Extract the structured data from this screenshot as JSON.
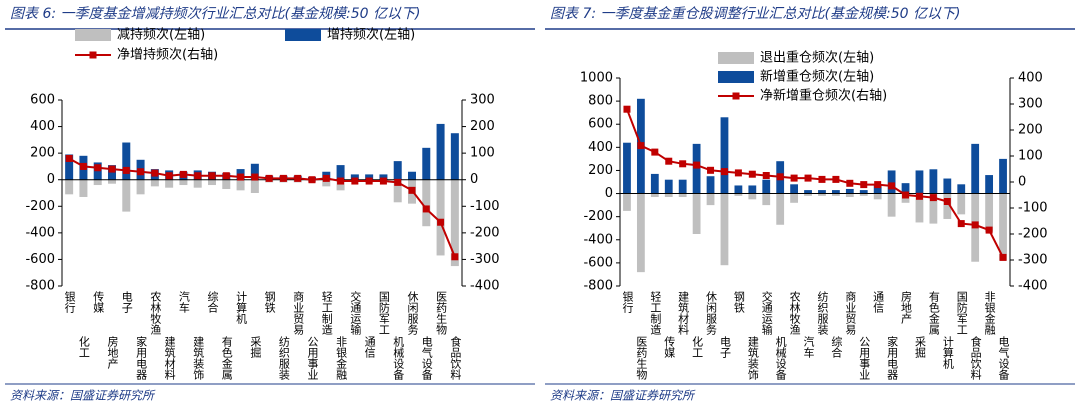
{
  "chart_data": [
    {
      "type": "bar",
      "title": "图表 6:  一季度基金增减持频次行业汇总对比(基金规模:50 亿以下)",
      "source": "资料来源：国盛证券研究所",
      "categories": [
        "银行",
        "化工",
        "传媒",
        "房地产",
        "电子",
        "家用电器",
        "农林牧渔",
        "建筑材料",
        "汽车",
        "建筑装饰",
        "综合",
        "有色金属",
        "计算机",
        "采掘",
        "钢铁",
        "纺织服装",
        "商业贸易",
        "公用事业",
        "轻工制造",
        "非银金融",
        "交通运输",
        "通信",
        "国防军工",
        "机械设备",
        "休闲服务",
        "电气设备",
        "医药生物",
        "食品饮料"
      ],
      "series": [
        {
          "name": "减持频次(左轴)",
          "type": "bar",
          "color": "#bfbfbf",
          "values": [
            -110,
            -130,
            -40,
            -30,
            -240,
            -110,
            -50,
            -60,
            -40,
            -60,
            -40,
            -70,
            -80,
            -100,
            -20,
            -20,
            -20,
            -20,
            -50,
            -80,
            -10,
            -20,
            -10,
            -170,
            -180,
            -350,
            -570,
            -650
          ]
        },
        {
          "name": "增持频次(左轴)",
          "type": "bar",
          "color": "#0e4c9b",
          "values": [
            190,
            180,
            130,
            110,
            280,
            150,
            80,
            70,
            60,
            70,
            60,
            50,
            80,
            120,
            30,
            30,
            30,
            20,
            60,
            110,
            40,
            40,
            40,
            140,
            60,
            240,
            420,
            350
          ]
        },
        {
          "name": "净增持频次(右轴)",
          "type": "line",
          "axis": "y2",
          "color": "#c00000",
          "values": [
            80,
            50,
            45,
            40,
            35,
            30,
            25,
            15,
            20,
            15,
            15,
            15,
            10,
            10,
            5,
            5,
            5,
            0,
            5,
            -5,
            -5,
            -5,
            -5,
            -10,
            -40,
            -110,
            -160,
            -290
          ]
        }
      ],
      "ylim": [
        -800,
        600
      ],
      "yticks": [
        -800,
        -600,
        -400,
        -200,
        0,
        200,
        400,
        600
      ],
      "y2lim": [
        -400,
        300
      ],
      "y2ticks": [
        -400,
        -300,
        -200,
        -100,
        0,
        100,
        200,
        300
      ]
    },
    {
      "type": "bar",
      "title": "图表 7:  一季度基金重仓股调整行业汇总对比(基金规模:50 亿以下)",
      "source": "资料来源：国盛证券研究所",
      "categories": [
        "银行",
        "医药生物",
        "轻工制造",
        "传媒",
        "建筑材料",
        "化工",
        "休闲服务",
        "电子",
        "钢铁",
        "建筑装饰",
        "交通运输",
        "机械设备",
        "农林牧渔",
        "汽车",
        "纺织服装",
        "综合",
        "商业贸易",
        "公用事业",
        "通信",
        "家用电器",
        "房地产",
        "采掘",
        "有色金属",
        "计算机",
        "国防军工",
        "食品饮料",
        "非银金融",
        "电气设备"
      ],
      "series": [
        {
          "name": "退出重仓频次(左轴)",
          "type": "bar",
          "color": "#bfbfbf",
          "values": [
            -150,
            -680,
            -30,
            -30,
            -30,
            -350,
            -100,
            -620,
            -20,
            -50,
            -100,
            -270,
            -80,
            -20,
            -20,
            -20,
            -30,
            -20,
            -50,
            -200,
            -80,
            -250,
            -260,
            -220,
            -180,
            -590,
            -330,
            -580
          ]
        },
        {
          "name": "新增重仓频次(左轴)",
          "type": "bar",
          "color": "#0e4c9b",
          "values": [
            440,
            820,
            170,
            120,
            120,
            430,
            150,
            660,
            70,
            70,
            120,
            280,
            80,
            30,
            30,
            30,
            40,
            30,
            70,
            200,
            90,
            200,
            210,
            130,
            80,
            430,
            160,
            300
          ]
        },
        {
          "name": "净新增重仓频次(右轴)",
          "type": "line",
          "axis": "y2",
          "color": "#c00000",
          "values": [
            280,
            140,
            115,
            80,
            70,
            65,
            45,
            40,
            35,
            30,
            25,
            20,
            15,
            15,
            10,
            10,
            -5,
            -10,
            -10,
            -15,
            -50,
            -55,
            -60,
            -75,
            -160,
            -165,
            -185,
            -290
          ]
        }
      ],
      "ylim": [
        -800,
        1000
      ],
      "yticks": [
        -800,
        -600,
        -400,
        -200,
        0,
        200,
        400,
        600,
        800,
        1000
      ],
      "y2lim": [
        -400,
        400
      ],
      "y2ticks": [
        -400,
        -300,
        -200,
        -100,
        0,
        100,
        200,
        300,
        400
      ]
    }
  ]
}
